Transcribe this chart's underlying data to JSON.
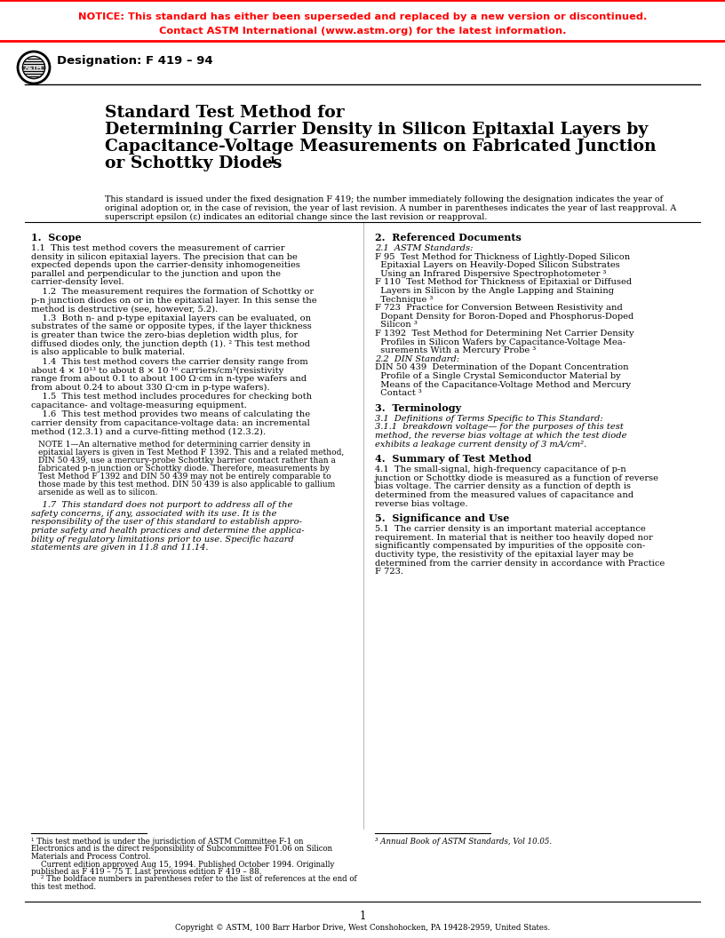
{
  "notice_line1": "NOTICE: This standard has either been superseded and replaced by a new version or discontinued.",
  "notice_line2": "Contact ASTM International (www.astm.org) for the latest information.",
  "notice_color": "#FF0000",
  "designation": "Designation: F 419 – 94",
  "title_line1": "Standard Test Method for",
  "title_line2": "Determining Carrier Density in Silicon Epitaxial Layers by",
  "title_line3": "Capacitance-Voltage Measurements on Fabricated Junction",
  "title_line4": "or Schottky Diodes ",
  "title_super": "1",
  "preamble_l1": "This standard is issued under the fixed designation F 419; the number immediately following the designation indicates the year of",
  "preamble_l2": "original adoption or, in the case of revision, the year of last revision. A number in parentheses indicates the year of last reapproval. A",
  "preamble_l3": "superscript epsilon (ε) indicates an editorial change since the last revision or reapproval.",
  "bg_color": "#ffffff",
  "text_color": "#000000",
  "page_number": "1",
  "copyright": "Copyright © ASTM, 100 Barr Harbor Drive, West Conshohocken, PA 19428-2959, United States."
}
